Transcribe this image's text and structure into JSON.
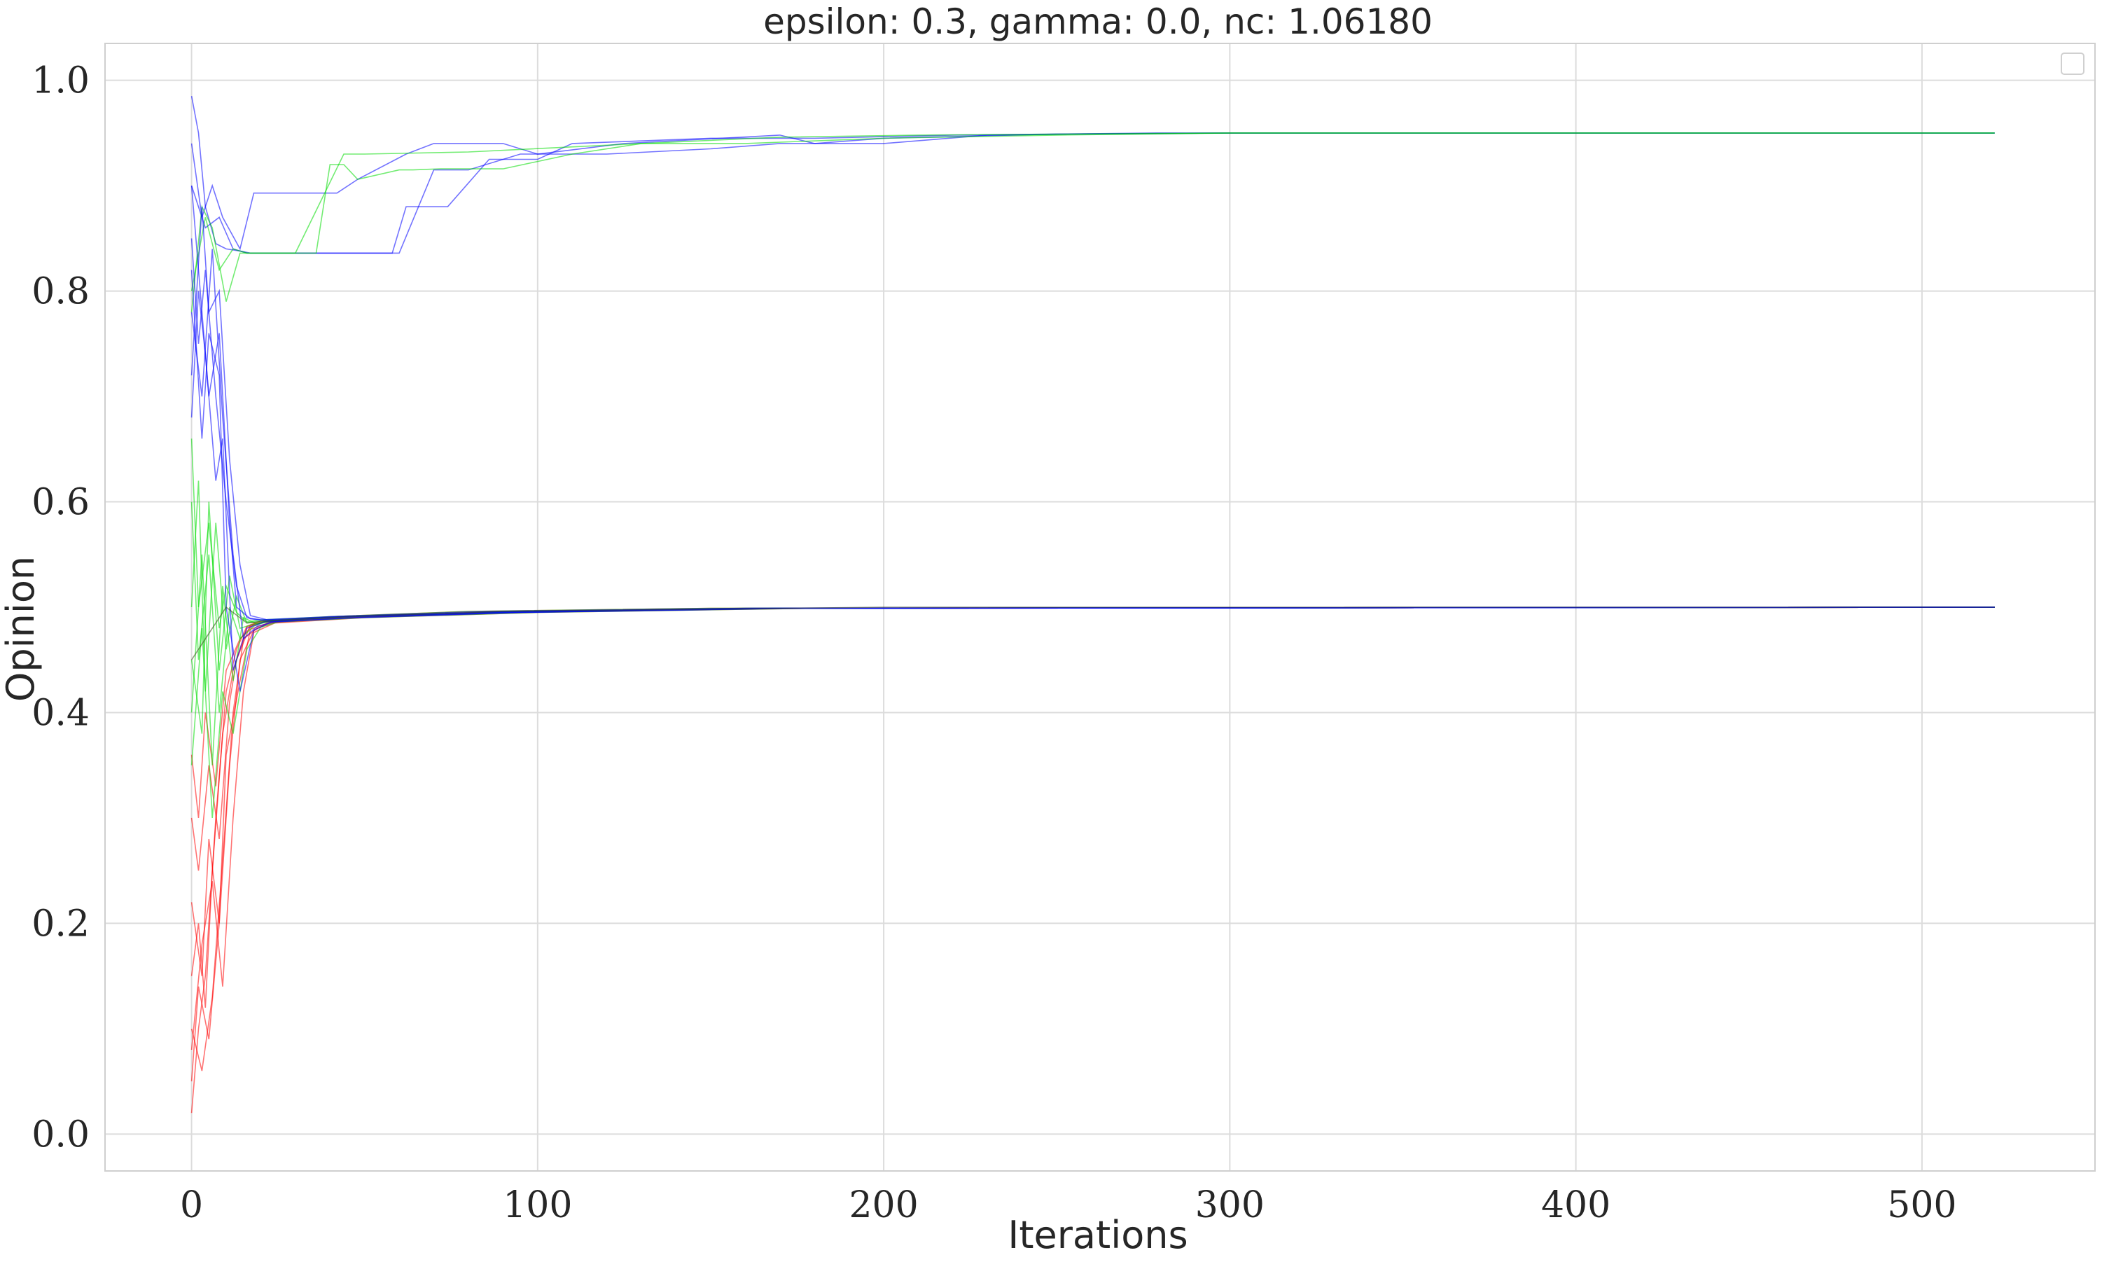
{
  "chart_data": {
    "type": "line",
    "title": "epsilon: 0.3, gamma: 0.0, nc: 1.06180",
    "xlabel": "Iterations",
    "ylabel": "Opinion",
    "xlim": [
      -25,
      550
    ],
    "ylim": [
      -0.035,
      1.035
    ],
    "x_ticks": [
      0,
      100,
      200,
      300,
      400,
      500
    ],
    "y_ticks": [
      0.0,
      0.2,
      0.4,
      0.6,
      0.8,
      1.0
    ],
    "x_tick_labels": [
      "0",
      "100",
      "200",
      "300",
      "400",
      "500"
    ],
    "y_tick_labels": [
      "0.0",
      "0.2",
      "0.4",
      "0.6",
      "0.8",
      "1.0"
    ],
    "grid": true,
    "legend": {
      "placement": "top-right",
      "entries": []
    },
    "series_colors": {
      "red": "#ff0000",
      "green": "#00dd00",
      "blue": "#0000ff",
      "dark": "#3a4a1a"
    },
    "iterations_end": 521,
    "center_cluster_value": 0.5,
    "upper_cluster_value": 0.95,
    "series": [
      {
        "color": "#0000ff",
        "x": [
          0,
          2,
          4,
          7,
          10,
          14,
          17,
          40,
          60,
          70,
          80,
          95,
          105,
          120,
          150,
          170,
          200,
          230,
          260,
          300,
          521
        ],
        "y": [
          0.985,
          0.95,
          0.88,
          0.845,
          0.84,
          0.838,
          0.836,
          0.836,
          0.836,
          0.915,
          0.915,
          0.93,
          0.93,
          0.93,
          0.935,
          0.94,
          0.94,
          0.948,
          0.949,
          0.95,
          0.95
        ]
      },
      {
        "color": "#0000ff",
        "x": [
          0,
          3,
          6,
          9,
          14,
          18,
          42,
          48,
          62,
          70,
          90,
          100,
          125,
          170,
          180,
          200,
          250,
          300,
          521
        ],
        "y": [
          0.94,
          0.87,
          0.9,
          0.87,
          0.84,
          0.893,
          0.893,
          0.906,
          0.93,
          0.94,
          0.94,
          0.93,
          0.94,
          0.948,
          0.94,
          0.945,
          0.949,
          0.95,
          0.95
        ]
      },
      {
        "color": "#0000ff",
        "x": [
          0,
          4,
          8,
          12,
          16,
          58,
          62,
          74,
          86,
          100,
          110,
          150,
          180,
          220,
          280,
          521
        ],
        "y": [
          0.9,
          0.86,
          0.87,
          0.84,
          0.836,
          0.836,
          0.88,
          0.88,
          0.925,
          0.925,
          0.94,
          0.945,
          0.945,
          0.948,
          0.95,
          0.95
        ]
      },
      {
        "color": "#00dd00",
        "x": [
          0,
          3,
          6,
          10,
          14,
          18,
          36,
          40,
          44,
          48,
          60,
          64,
          72,
          90,
          110,
          130,
          160,
          200,
          250,
          300,
          521
        ],
        "y": [
          0.78,
          0.88,
          0.86,
          0.79,
          0.836,
          0.836,
          0.836,
          0.92,
          0.92,
          0.906,
          0.915,
          0.915,
          0.916,
          0.916,
          0.93,
          0.94,
          0.94,
          0.945,
          0.948,
          0.95,
          0.95
        ]
      },
      {
        "color": "#00dd00",
        "x": [
          0,
          4,
          8,
          12,
          16,
          30,
          44,
          50,
          80,
          130,
          170,
          210,
          300,
          521
        ],
        "y": [
          0.8,
          0.87,
          0.82,
          0.84,
          0.836,
          0.836,
          0.93,
          0.93,
          0.932,
          0.94,
          0.946,
          0.948,
          0.95,
          0.95
        ]
      },
      {
        "color": "#ff0000",
        "x": [
          0,
          2,
          4,
          7,
          10,
          13,
          16,
          20,
          40,
          80,
          150,
          521
        ],
        "y": [
          0.02,
          0.1,
          0.15,
          0.3,
          0.42,
          0.46,
          0.482,
          0.487,
          0.491,
          0.496,
          0.499,
          0.5
        ]
      },
      {
        "color": "#ff0000",
        "x": [
          0,
          2,
          5,
          8,
          11,
          14,
          18,
          22,
          45,
          90,
          170,
          521
        ],
        "y": [
          0.05,
          0.14,
          0.09,
          0.2,
          0.35,
          0.45,
          0.478,
          0.485,
          0.49,
          0.495,
          0.499,
          0.5
        ]
      },
      {
        "color": "#ff0000",
        "x": [
          0,
          3,
          6,
          9,
          12,
          15,
          19,
          25,
          50,
          100,
          180,
          521
        ],
        "y": [
          0.1,
          0.06,
          0.13,
          0.26,
          0.4,
          0.47,
          0.48,
          0.487,
          0.491,
          0.496,
          0.499,
          0.5
        ]
      },
      {
        "color": "#ff0000",
        "x": [
          0,
          2,
          4,
          6,
          9,
          12,
          16,
          21,
          40,
          85,
          160,
          521
        ],
        "y": [
          0.15,
          0.2,
          0.12,
          0.25,
          0.38,
          0.44,
          0.481,
          0.486,
          0.49,
          0.495,
          0.499,
          0.5
        ]
      },
      {
        "color": "#ff0000",
        "x": [
          0,
          3,
          5,
          8,
          10,
          14,
          17,
          23,
          48,
          95,
          175,
          521
        ],
        "y": [
          0.22,
          0.15,
          0.28,
          0.2,
          0.36,
          0.43,
          0.479,
          0.486,
          0.491,
          0.496,
          0.499,
          0.5
        ]
      },
      {
        "color": "#ff0000",
        "x": [
          0,
          2,
          5,
          8,
          11,
          13,
          17,
          22,
          44,
          88,
          165,
          521
        ],
        "y": [
          0.3,
          0.25,
          0.35,
          0.28,
          0.41,
          0.45,
          0.483,
          0.487,
          0.491,
          0.495,
          0.499,
          0.5
        ]
      },
      {
        "color": "#ff0000",
        "x": [
          0,
          3,
          6,
          9,
          12,
          15,
          18,
          24,
          50,
          100,
          180,
          521
        ],
        "y": [
          0.08,
          0.18,
          0.24,
          0.14,
          0.3,
          0.42,
          0.476,
          0.485,
          0.49,
          0.495,
          0.499,
          0.5
        ]
      },
      {
        "color": "#ff0000",
        "x": [
          0,
          2,
          4,
          7,
          10,
          14,
          18,
          23,
          46,
          92,
          170,
          521
        ],
        "y": [
          0.36,
          0.3,
          0.4,
          0.33,
          0.44,
          0.47,
          0.484,
          0.487,
          0.491,
          0.496,
          0.499,
          0.5
        ]
      },
      {
        "color": "#00dd00",
        "x": [
          0,
          2,
          5,
          8,
          11,
          14,
          18,
          22,
          45,
          90,
          170,
          521
        ],
        "y": [
          0.6,
          0.45,
          0.55,
          0.4,
          0.5,
          0.47,
          0.482,
          0.487,
          0.491,
          0.495,
          0.499,
          0.5
        ]
      },
      {
        "color": "#00dd00",
        "x": [
          0,
          3,
          6,
          9,
          12,
          15,
          19,
          24,
          48,
          95,
          175,
          521
        ],
        "y": [
          0.4,
          0.55,
          0.35,
          0.52,
          0.43,
          0.49,
          0.484,
          0.487,
          0.491,
          0.496,
          0.499,
          0.5
        ]
      },
      {
        "color": "#00dd00",
        "x": [
          0,
          2,
          4,
          7,
          10,
          13,
          16,
          21,
          42,
          86,
          160,
          521
        ],
        "y": [
          0.5,
          0.62,
          0.42,
          0.58,
          0.46,
          0.51,
          0.485,
          0.487,
          0.491,
          0.495,
          0.499,
          0.5
        ]
      },
      {
        "color": "#00dd00",
        "x": [
          0,
          3,
          5,
          8,
          11,
          14,
          17,
          22,
          44,
          90,
          168,
          521
        ],
        "y": [
          0.45,
          0.38,
          0.6,
          0.44,
          0.53,
          0.48,
          0.483,
          0.487,
          0.491,
          0.495,
          0.499,
          0.5
        ]
      },
      {
        "color": "#00dd00",
        "x": [
          0,
          2,
          5,
          8,
          10,
          13,
          16,
          20,
          40,
          80,
          150,
          521
        ],
        "y": [
          0.66,
          0.5,
          0.58,
          0.48,
          0.52,
          0.495,
          0.486,
          0.488,
          0.491,
          0.496,
          0.499,
          0.5
        ]
      },
      {
        "color": "#00dd00",
        "x": [
          0,
          3,
          6,
          9,
          12,
          16,
          20,
          25,
          50,
          100,
          180,
          521
        ],
        "y": [
          0.35,
          0.48,
          0.3,
          0.42,
          0.38,
          0.46,
          0.481,
          0.486,
          0.49,
          0.495,
          0.499,
          0.5
        ]
      },
      {
        "color": "#0000ff",
        "x": [
          0,
          2,
          4,
          7,
          10,
          13,
          16,
          20,
          40,
          85,
          160,
          521
        ],
        "y": [
          0.85,
          0.75,
          0.82,
          0.7,
          0.6,
          0.52,
          0.49,
          0.488,
          0.491,
          0.496,
          0.499,
          0.5
        ]
      },
      {
        "color": "#0000ff",
        "x": [
          0,
          3,
          5,
          8,
          11,
          14,
          17,
          22,
          44,
          90,
          170,
          521
        ],
        "y": [
          0.72,
          0.88,
          0.78,
          0.8,
          0.64,
          0.54,
          0.492,
          0.488,
          0.491,
          0.495,
          0.499,
          0.5
        ]
      },
      {
        "color": "#0000ff",
        "x": [
          0,
          2,
          5,
          8,
          11,
          13,
          17,
          22,
          46,
          92,
          172,
          521
        ],
        "y": [
          0.9,
          0.82,
          0.7,
          0.76,
          0.58,
          0.5,
          0.489,
          0.487,
          0.491,
          0.496,
          0.499,
          0.5
        ]
      },
      {
        "color": "#0000ff",
        "x": [
          0,
          3,
          6,
          9,
          12,
          15,
          19,
          24,
          48,
          96,
          176,
          521
        ],
        "y": [
          0.78,
          0.7,
          0.84,
          0.68,
          0.55,
          0.47,
          0.482,
          0.486,
          0.49,
          0.495,
          0.499,
          0.5
        ]
      },
      {
        "color": "#0000ff",
        "x": [
          0,
          2,
          4,
          7,
          9,
          12,
          16,
          21,
          42,
          86,
          162,
          521
        ],
        "y": [
          0.68,
          0.8,
          0.74,
          0.62,
          0.66,
          0.44,
          0.48,
          0.486,
          0.491,
          0.495,
          0.499,
          0.5
        ]
      },
      {
        "color": "#0000ff",
        "x": [
          0,
          3,
          5,
          8,
          10,
          14,
          18,
          23,
          46,
          94,
          174,
          521
        ],
        "y": [
          0.82,
          0.66,
          0.76,
          0.72,
          0.5,
          0.42,
          0.478,
          0.486,
          0.49,
          0.495,
          0.499,
          0.5
        ]
      },
      {
        "color": "#3a4a1a",
        "x": [
          0,
          10,
          16,
          22,
          45,
          90,
          200,
          521
        ],
        "y": [
          0.45,
          0.5,
          0.485,
          0.487,
          0.491,
          0.496,
          0.5,
          0.5
        ]
      }
    ]
  }
}
